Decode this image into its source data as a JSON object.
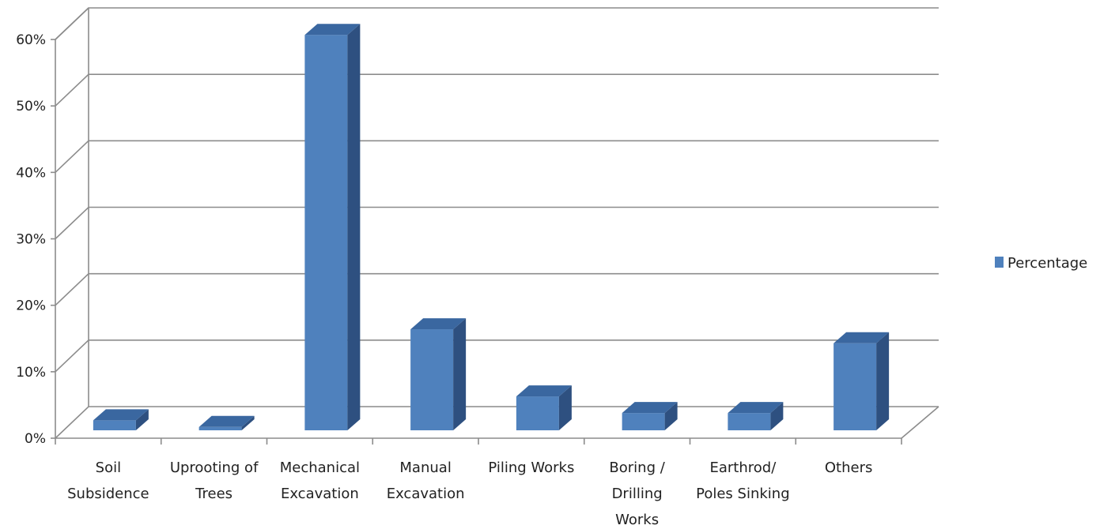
{
  "chart_data": {
    "type": "bar",
    "categories": [
      [
        "Soil",
        "Subsidence"
      ],
      [
        "Uprooting of",
        "Trees"
      ],
      [
        "Mechanical",
        "Excavation"
      ],
      [
        "Manual",
        "Excavation"
      ],
      [
        "Piling Works"
      ],
      [
        "Boring /",
        "Drilling",
        "Works"
      ],
      [
        "Earthrod/",
        "Poles Sinking"
      ],
      [
        "Others"
      ]
    ],
    "series": [
      {
        "name": "Percentage",
        "values": [
          1.5,
          0.5,
          59.5,
          15.2,
          5.1,
          2.6,
          2.6,
          13.1
        ],
        "color": "#4F81BD",
        "side_color": "#2E5080",
        "top_color": "#3A67A0"
      }
    ],
    "yticks": [
      "0%",
      "10%",
      "20%",
      "30%",
      "40%",
      "50%",
      "60%"
    ],
    "ylim": [
      0,
      60
    ],
    "legend_position": "right",
    "grid": true
  }
}
